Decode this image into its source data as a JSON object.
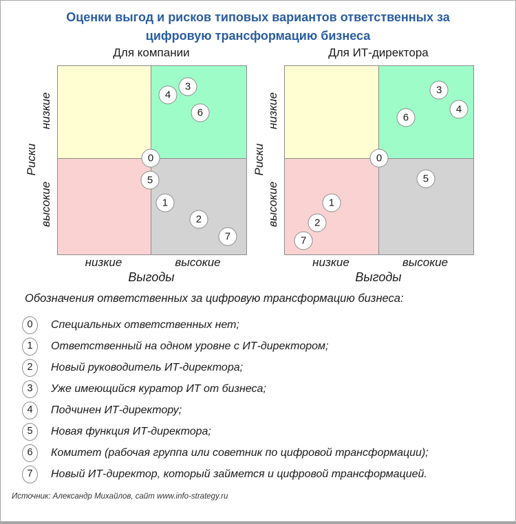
{
  "page": {
    "title": "Оценки выгод и рисков типовых вариантов ответственных за цифровую трансформацию бизнеса",
    "footer": "Источник: Александр Михайлов, сайт www.info-strategy.ru"
  },
  "colors": {
    "title_blue": "#2a5da0",
    "border_gray": "#8c8c8c",
    "frame_gray": "#a6a6a6",
    "point_fill": "#ffffff"
  },
  "chart_data": [
    {
      "type": "scatter",
      "title": "Для компании",
      "xlabel": "Выгоды",
      "ylabel": "Риски",
      "x_ticks": [
        "низкие",
        "высокие"
      ],
      "y_ticks": [
        "низкие",
        "высокие"
      ],
      "x_split": 0.493,
      "y_split": 0.489,
      "quadrant_colors": {
        "top_left": "#fffdd2",
        "top_right": "#9efcc8",
        "bottom_left": "#fbd2d2",
        "bottom_right": "#d3d3d3"
      },
      "coord_note": "x: 0=низкие выгоды, 1=высокие выгоды; y: 0=низкие риски, 1=высокие риски (fraction of plot)",
      "points": [
        {
          "id": "0",
          "x": 0.493,
          "y": 0.489
        },
        {
          "id": "1",
          "x": 0.569,
          "y": 0.726
        },
        {
          "id": "2",
          "x": 0.748,
          "y": 0.814
        },
        {
          "id": "3",
          "x": 0.69,
          "y": 0.109
        },
        {
          "id": "4",
          "x": 0.584,
          "y": 0.153
        },
        {
          "id": "5",
          "x": 0.489,
          "y": 0.606
        },
        {
          "id": "6",
          "x": 0.755,
          "y": 0.248
        },
        {
          "id": "7",
          "x": 0.901,
          "y": 0.905
        }
      ]
    },
    {
      "type": "scatter",
      "title": "Для ИТ-директора",
      "xlabel": "Выгоды",
      "ylabel": "Риски",
      "x_ticks": [
        "низкие",
        "высокие"
      ],
      "y_ticks": [
        "низкие",
        "высокие"
      ],
      "x_split": 0.496,
      "y_split": 0.489,
      "quadrant_colors": {
        "top_left": "#fffdd2",
        "top_right": "#9efcc8",
        "bottom_left": "#fbd2d2",
        "bottom_right": "#d3d3d3"
      },
      "coord_note": "x: 0=низкие выгоды, 1=высокие выгоды; y: 0=низкие риски, 1=высокие риски (fraction of plot)",
      "points": [
        {
          "id": "0",
          "x": 0.5,
          "y": 0.489
        },
        {
          "id": "1",
          "x": 0.248,
          "y": 0.726
        },
        {
          "id": "2",
          "x": 0.172,
          "y": 0.832
        },
        {
          "id": "3",
          "x": 0.818,
          "y": 0.128
        },
        {
          "id": "4",
          "x": 0.923,
          "y": 0.23
        },
        {
          "id": "5",
          "x": 0.748,
          "y": 0.599
        },
        {
          "id": "6",
          "x": 0.642,
          "y": 0.274
        },
        {
          "id": "7",
          "x": 0.099,
          "y": 0.927
        }
      ]
    }
  ],
  "legend": {
    "heading": "Обозначения ответственных за цифровую трансформацию бизнеса:",
    "items": [
      {
        "id": "0",
        "label": "Специальных ответственных нет;"
      },
      {
        "id": "1",
        "label": "Ответственный на одном уровне с ИТ-директором;"
      },
      {
        "id": "2",
        "label": "Новый руководитель ИТ-директора;"
      },
      {
        "id": "3",
        "label": "Уже имеющийся куратор ИТ от бизнеса;"
      },
      {
        "id": "4",
        "label": "Подчинен ИТ-директору;"
      },
      {
        "id": "5",
        "label": "Новая функция ИТ-директора;"
      },
      {
        "id": "6",
        "label": "Комитет (рабочая группа или советник по цифровой трансформации);"
      },
      {
        "id": "7",
        "label": "Новый ИТ-директор, который займется и цифровой трансформацией."
      }
    ]
  }
}
